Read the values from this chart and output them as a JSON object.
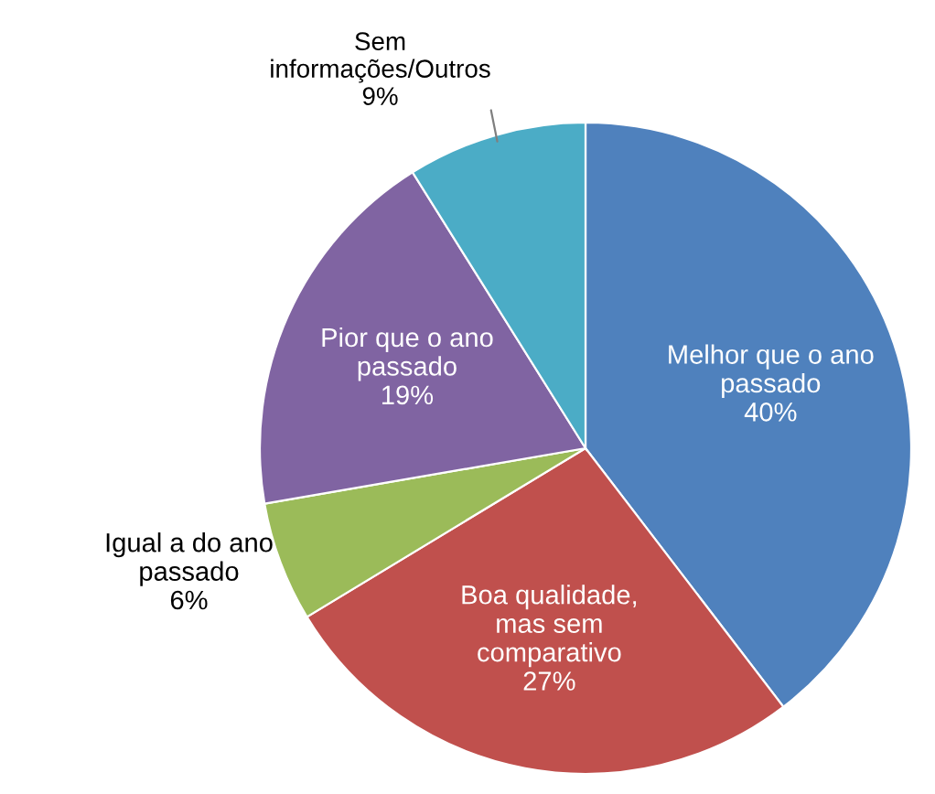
{
  "chart_data": {
    "type": "pie",
    "categories": [
      "Melhor que o ano\npassado",
      "Boa qualidade,\nmas sem\ncomparativo",
      "Igual a do ano\npassado",
      "Pior que o ano\npassado",
      "Sem\ninformações/Outros"
    ],
    "values": [
      40,
      27,
      6,
      19,
      9
    ],
    "colors": [
      "#4f81bd",
      "#c0504d",
      "#9bbb59",
      "#8064a2",
      "#4bacc6"
    ],
    "value_labels": [
      "40%",
      "27%",
      "6%",
      "19%",
      "9%"
    ],
    "legend": false
  }
}
